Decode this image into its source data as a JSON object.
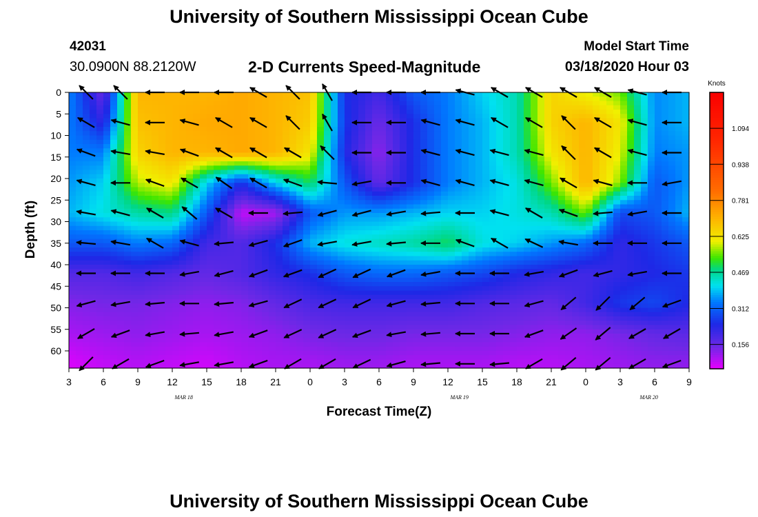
{
  "header": {
    "title": "University of Southern Mississippi Ocean Cube",
    "station_id": "42031",
    "location": "30.0900N 88.2120W",
    "subtitle": "2-D Currents Speed-Magnitude",
    "model_label": "Model Start Time",
    "model_time": "03/18/2020 Hour 03"
  },
  "footer": {
    "title": "University of Southern Mississippi Ocean Cube"
  },
  "chart_data": {
    "type": "heatmap",
    "title": "2-D Currents Speed-Magnitude",
    "xlabel": "Forecast Time(Z)",
    "ylabel": "Depth (ft)",
    "x_tick_labels": [
      "3",
      "6",
      "9",
      "12",
      "15",
      "18",
      "21",
      "0",
      "3",
      "6",
      "9",
      "12",
      "15",
      "18",
      "21",
      "0",
      "3",
      "6",
      "9"
    ],
    "x_hours": [
      0,
      3,
      6,
      9,
      12,
      15,
      18,
      21,
      24,
      27,
      30,
      33,
      36,
      39,
      42,
      45,
      48,
      51,
      54
    ],
    "date_labels": [
      {
        "text": "MAR 18",
        "hour": 10
      },
      {
        "text": "MAR 19",
        "hour": 34
      },
      {
        "text": "MAR 20",
        "hour": 50.5
      }
    ],
    "y_ticks": [
      0,
      5,
      10,
      15,
      20,
      25,
      30,
      35,
      40,
      45,
      50,
      55,
      60
    ],
    "ylim": [
      0,
      64
    ],
    "xlim": [
      0,
      54
    ],
    "colorbar": {
      "title": "Knots",
      "labels": [
        "1.094",
        "0.938",
        "0.781",
        "0.625",
        "0.469",
        "0.312",
        "0.156"
      ],
      "values": [
        1.094,
        0.938,
        0.781,
        0.625,
        0.469,
        0.312,
        0.156
      ],
      "range": [
        0.05,
        1.25
      ]
    },
    "speed_depths": [
      0,
      7,
      14,
      21,
      28,
      35,
      42,
      49,
      56,
      63
    ],
    "speed_hours": [
      0,
      3,
      6,
      9,
      12,
      15,
      18,
      21,
      24,
      27,
      30,
      33,
      36,
      39,
      42,
      45,
      48,
      51,
      54
    ],
    "speed_knots": [
      [
        0.35,
        0.15,
        0.7,
        0.7,
        0.7,
        0.72,
        0.7,
        0.68,
        0.25,
        0.2,
        0.3,
        0.34,
        0.4,
        0.45,
        0.65,
        0.6,
        0.55,
        0.35,
        0.38
      ],
      [
        0.34,
        0.22,
        0.68,
        0.7,
        0.72,
        0.72,
        0.7,
        0.66,
        0.26,
        0.15,
        0.25,
        0.34,
        0.38,
        0.45,
        0.65,
        0.7,
        0.62,
        0.35,
        0.38
      ],
      [
        0.34,
        0.34,
        0.65,
        0.7,
        0.7,
        0.72,
        0.7,
        0.62,
        0.24,
        0.12,
        0.25,
        0.34,
        0.38,
        0.45,
        0.62,
        0.7,
        0.6,
        0.34,
        0.36
      ],
      [
        0.36,
        0.4,
        0.58,
        0.62,
        0.4,
        0.25,
        0.4,
        0.5,
        0.3,
        0.16,
        0.25,
        0.34,
        0.38,
        0.42,
        0.55,
        0.7,
        0.56,
        0.3,
        0.36
      ],
      [
        0.38,
        0.42,
        0.46,
        0.48,
        0.3,
        0.08,
        0.1,
        0.3,
        0.36,
        0.36,
        0.38,
        0.4,
        0.4,
        0.42,
        0.45,
        0.55,
        0.28,
        0.3,
        0.38
      ],
      [
        0.3,
        0.3,
        0.34,
        0.32,
        0.2,
        0.18,
        0.25,
        0.38,
        0.42,
        0.44,
        0.46,
        0.5,
        0.42,
        0.4,
        0.36,
        0.32,
        0.22,
        0.26,
        0.3
      ],
      [
        0.18,
        0.18,
        0.2,
        0.18,
        0.16,
        0.18,
        0.22,
        0.25,
        0.3,
        0.32,
        0.32,
        0.3,
        0.28,
        0.24,
        0.22,
        0.2,
        0.22,
        0.24,
        0.26
      ],
      [
        0.13,
        0.14,
        0.14,
        0.13,
        0.12,
        0.13,
        0.16,
        0.19,
        0.2,
        0.2,
        0.2,
        0.2,
        0.18,
        0.17,
        0.16,
        0.2,
        0.26,
        0.28,
        0.24
      ],
      [
        0.1,
        0.11,
        0.12,
        0.11,
        0.1,
        0.11,
        0.12,
        0.14,
        0.15,
        0.15,
        0.14,
        0.14,
        0.14,
        0.13,
        0.12,
        0.12,
        0.14,
        0.16,
        0.17
      ],
      [
        0.06,
        0.08,
        0.09,
        0.08,
        0.07,
        0.09,
        0.1,
        0.1,
        0.11,
        0.11,
        0.1,
        0.1,
        0.1,
        0.09,
        0.09,
        0.1,
        0.11,
        0.12,
        0.12
      ]
    ],
    "arrow_hours": [
      1.5,
      4.5,
      7.5,
      10.5,
      13.5,
      16.5,
      19.5,
      22.5,
      25.5,
      28.5,
      31.5,
      34.5,
      37.5,
      40.5,
      43.5,
      46.5,
      49.5,
      52.5
    ],
    "arrow_depths": [
      0,
      7,
      14,
      21,
      28,
      35,
      42,
      49,
      56,
      63
    ],
    "arrow_dir_deg": [
      [
        135,
        135,
        180,
        180,
        180,
        150,
        135,
        120,
        180,
        180,
        180,
        165,
        150,
        150,
        150,
        150,
        165,
        180
      ],
      [
        150,
        165,
        180,
        165,
        150,
        150,
        135,
        120,
        180,
        180,
        165,
        165,
        150,
        150,
        135,
        150,
        165,
        180
      ],
      [
        160,
        170,
        170,
        160,
        150,
        150,
        150,
        135,
        180,
        180,
        165,
        165,
        165,
        165,
        135,
        150,
        165,
        180
      ],
      [
        165,
        180,
        160,
        150,
        145,
        150,
        160,
        175,
        190,
        180,
        165,
        165,
        165,
        165,
        150,
        165,
        180,
        190
      ],
      [
        170,
        165,
        150,
        140,
        150,
        180,
        185,
        195,
        195,
        190,
        185,
        180,
        165,
        150,
        160,
        185,
        190,
        180
      ],
      [
        175,
        170,
        150,
        165,
        185,
        195,
        200,
        190,
        190,
        185,
        180,
        160,
        150,
        155,
        170,
        180,
        180,
        180
      ],
      [
        180,
        180,
        180,
        190,
        195,
        200,
        200,
        205,
        205,
        200,
        190,
        180,
        180,
        190,
        200,
        195,
        190,
        180
      ],
      [
        195,
        190,
        185,
        180,
        185,
        195,
        205,
        205,
        205,
        195,
        185,
        180,
        180,
        195,
        220,
        225,
        220,
        200
      ],
      [
        210,
        200,
        190,
        185,
        190,
        200,
        205,
        205,
        200,
        190,
        185,
        180,
        180,
        200,
        215,
        220,
        210,
        210
      ],
      [
        225,
        210,
        200,
        190,
        190,
        200,
        210,
        210,
        205,
        195,
        185,
        180,
        185,
        210,
        220,
        220,
        210,
        200
      ]
    ]
  }
}
